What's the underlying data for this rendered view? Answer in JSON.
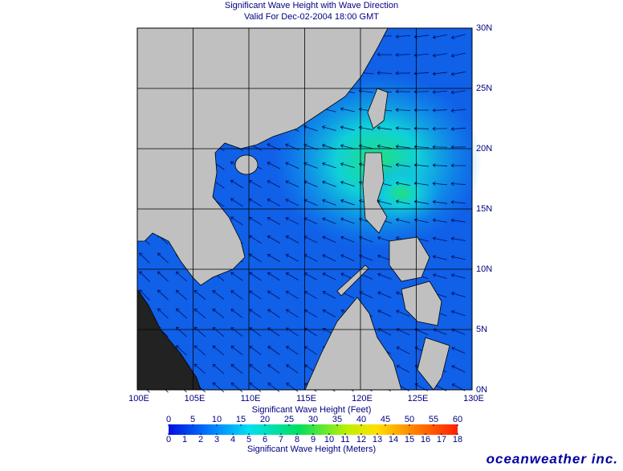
{
  "header": {
    "title": "Significant Wave Height with Wave Direction",
    "subtitle": "Valid For Dec-02-2004 18:00 GMT"
  },
  "map": {
    "lon_labels": [
      "100E",
      "105E",
      "110E",
      "115E",
      "120E",
      "125E",
      "130E"
    ],
    "lat_labels": [
      "30N",
      "25N",
      "20N",
      "15N",
      "10N",
      "5N",
      "0N"
    ]
  },
  "legend": {
    "feet_title": "Significant Wave Height (Feet)",
    "feet_range": [
      0,
      60
    ],
    "feet_ticks": [
      0,
      5,
      10,
      15,
      20,
      25,
      30,
      35,
      40,
      45,
      50,
      55,
      60
    ],
    "meters_title": "Significant Wave Height (Meters)",
    "meters_range": [
      0,
      18
    ],
    "meters_ticks": [
      0,
      1,
      2,
      3,
      4,
      5,
      6,
      7,
      8,
      9,
      10,
      11,
      12,
      13,
      14,
      15,
      16,
      17,
      18
    ]
  },
  "footer": {
    "brand": "oceanweather inc."
  }
}
